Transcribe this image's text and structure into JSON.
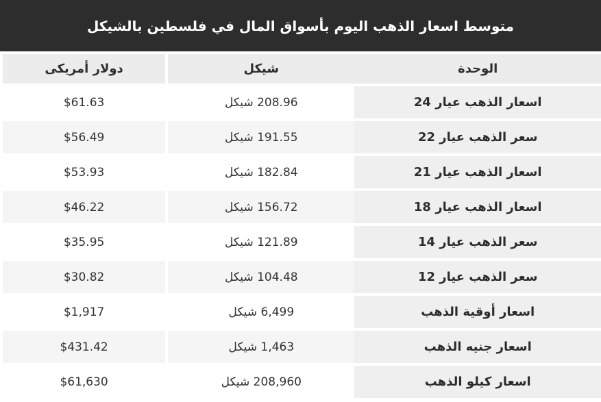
{
  "title": "متوسط اسعار الذهب اليوم بأسواق المال في فلسطين بالشيكل",
  "colors": {
    "title_bg": "#2d2d2d",
    "title_text": "#ffffff",
    "header_row_bg": "#ececec",
    "unit_column_bg": "#efefef",
    "odd_row_bg": "#ffffff",
    "even_row_bg": "#f5f5f5",
    "cell_text": "#333333",
    "divider": "#ffffff"
  },
  "chart_data": {
    "type": "table",
    "title": "متوسط اسعار الذهب اليوم بأسواق المال في فلسطين بالشيكل",
    "columns": [
      "الوحدة",
      "شيكل",
      "دولار أمريكى"
    ],
    "rows": [
      {
        "unit": "اسعار الذهب عيار 24",
        "shekel": "208.96 شيكل",
        "dollar": "$61.63",
        "shekel_value": 208.96,
        "dollar_value": 61.63
      },
      {
        "unit": "سعر الذهب عيار 22",
        "shekel": "191.55 شيكل",
        "dollar": "$56.49",
        "shekel_value": 191.55,
        "dollar_value": 56.49
      },
      {
        "unit": "اسعار الذهب عيار 21",
        "shekel": "182.84 شيكل",
        "dollar": "$53.93",
        "shekel_value": 182.84,
        "dollar_value": 53.93
      },
      {
        "unit": "اسعار الذهب عيار 18",
        "shekel": "156.72 شيكل",
        "dollar": "$46.22",
        "shekel_value": 156.72,
        "dollar_value": 46.22
      },
      {
        "unit": "سعر الذهب عيار 14",
        "shekel": "121.89 شيكل",
        "dollar": "$35.95",
        "shekel_value": 121.89,
        "dollar_value": 35.95
      },
      {
        "unit": "سعر الذهب عيار 12",
        "shekel": "104.48 شيكل",
        "dollar": "$30.82",
        "shekel_value": 104.48,
        "dollar_value": 30.82
      },
      {
        "unit": "اسعار أوقية الذهب",
        "shekel": "6,499 شيكل",
        "dollar": "$1,917",
        "shekel_value": 6499,
        "dollar_value": 1917
      },
      {
        "unit": "اسعار جنيه الذهب",
        "shekel": "1,463 شيكل",
        "dollar": "$431.42",
        "shekel_value": 1463,
        "dollar_value": 431.42
      },
      {
        "unit": "اسعار كيلو الذهب",
        "shekel": "208,960 شيكل",
        "dollar": "$61,630",
        "shekel_value": 208960,
        "dollar_value": 61630
      }
    ]
  }
}
